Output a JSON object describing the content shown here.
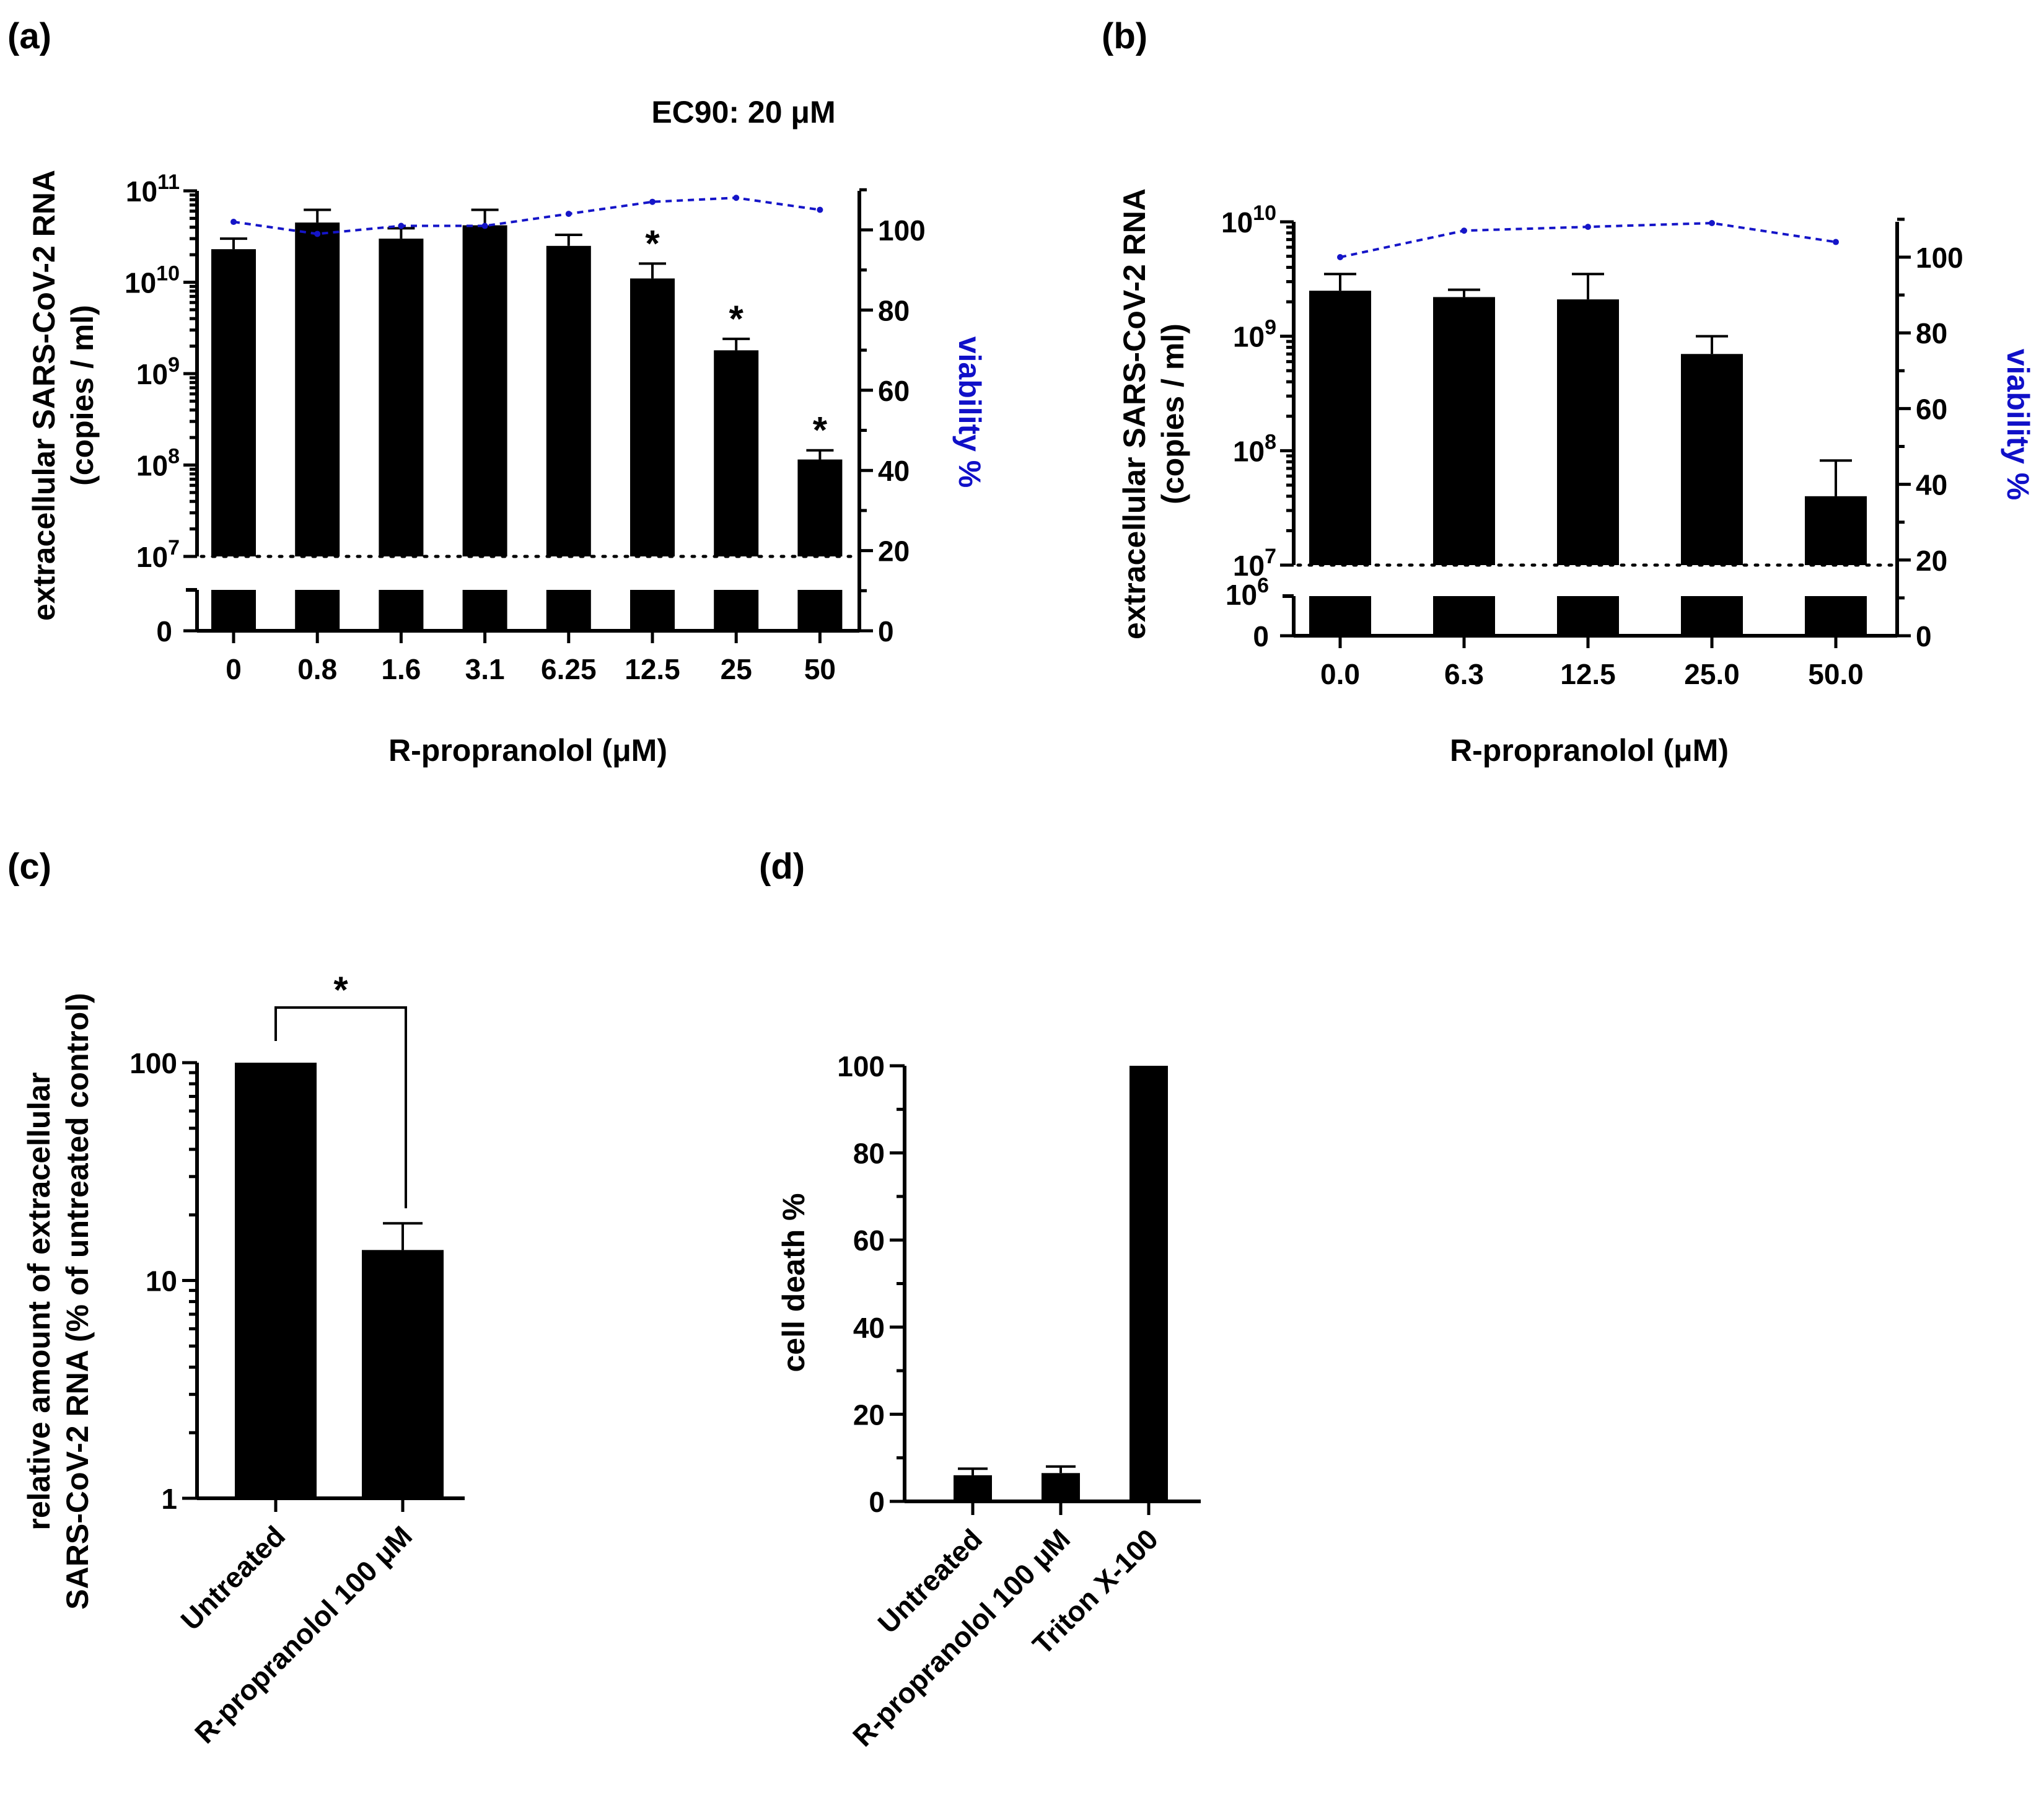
{
  "chart_data": [
    {
      "panel": "(a)",
      "type": "bar",
      "title": "EC90: 20 μM",
      "xlabel": "R-propranolol (μM)",
      "ylabel": [
        "extracellular SARS-CoV-2 RNA",
        "(copies / ml)"
      ],
      "y2label": "viability %",
      "categories": [
        "0",
        "0.8",
        "1.6",
        "3.1",
        "6.25",
        "12.5",
        "25",
        "50"
      ],
      "values": [
        23000000000.0,
        45000000000.0,
        30000000000.0,
        42000000000.0,
        25000000000.0,
        11000000000.0,
        1800000000.0,
        115000000.0
      ],
      "errors": [
        7000000000.0,
        17000000000.0,
        9000000000.0,
        20000000000.0,
        8000000000.0,
        5000000000.0,
        600000000.0,
        30000000.0
      ],
      "significant": [
        false,
        false,
        false,
        false,
        false,
        true,
        true,
        true
      ],
      "star_label": "*",
      "viability": [
        102,
        99,
        101,
        101,
        104,
        107,
        108,
        105
      ],
      "y_scale": "log",
      "ylim": [
        10000000.0,
        100000000000.0
      ],
      "yticks": [
        {
          "exp": "11",
          "value": 100000000000.0
        },
        {
          "exp": "10",
          "value": 10000000000.0
        },
        {
          "exp": "9",
          "value": 1000000000.0
        },
        {
          "exp": "8",
          "value": 100000000.0
        },
        {
          "exp": "7",
          "value": 10000000.0
        }
      ],
      "y_tick_base": "10",
      "y_zero_label": "0",
      "y2lim": [
        0,
        110
      ],
      "y2ticks": [
        "100",
        "80",
        "60",
        "40",
        "20",
        "0"
      ]
    },
    {
      "panel": "(b)",
      "type": "bar",
      "xlabel": "R-propranolol (μM)",
      "ylabel": [
        "extracellular SARS-CoV-2 RNA",
        "(copies / ml)"
      ],
      "y2label": "viability %",
      "categories": [
        "0.0",
        "6.3",
        "12.5",
        "25.0",
        "50.0"
      ],
      "values": [
        2500000000.0,
        2200000000.0,
        2100000000.0,
        700000000.0,
        40000000.0
      ],
      "errors": [
        1000000000.0,
        350000000.0,
        1400000000.0,
        300000000.0,
        42000000.0
      ],
      "viability": [
        100,
        107,
        108,
        109,
        104
      ],
      "y_scale": "log",
      "ylim": [
        10000000.0,
        10000000000.0
      ],
      "yticks": [
        {
          "exp": "10",
          "value": 10000000000.0
        },
        {
          "exp": "9",
          "value": 1000000000.0
        },
        {
          "exp": "8",
          "value": 100000000.0
        },
        {
          "exp": "7",
          "value": 10000000.0
        }
      ],
      "y_tick_base": "10",
      "y_break_label": {
        "base": "10",
        "exp": "6"
      },
      "y_zero_label": "0",
      "y2lim": [
        0,
        110
      ],
      "y2ticks": [
        "100",
        "80",
        "60",
        "40",
        "20",
        "0"
      ]
    },
    {
      "panel": "(c)",
      "type": "bar",
      "ylabel": [
        "relative amount of extracellular",
        "SARS-CoV-2 RNA (% of untreated control)"
      ],
      "categories": [
        "Untreated",
        "R-propranolol 100 μM"
      ],
      "values": [
        100,
        13.8
      ],
      "errors": [
        0,
        4.5
      ],
      "y_scale": "log",
      "ylim": [
        1,
        100
      ],
      "yticks": [
        "100",
        "10",
        "1"
      ],
      "significance": "*"
    },
    {
      "panel": "(d)",
      "type": "bar",
      "ylabel": "cell death %",
      "categories": [
        "Untreated",
        "R-propranolol 100 μM",
        "Triton X-100"
      ],
      "values": [
        6,
        6.5,
        100
      ],
      "errors": [
        1.5,
        1.5,
        0
      ],
      "ylim": [
        0,
        100
      ],
      "yticks": [
        "100",
        "80",
        "60",
        "40",
        "20",
        "0"
      ]
    }
  ]
}
